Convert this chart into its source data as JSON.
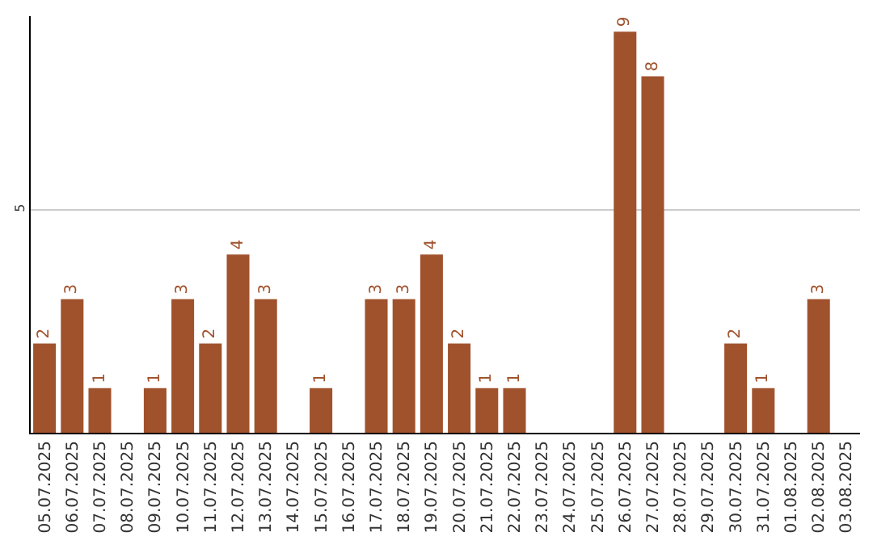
{
  "chart_data": {
    "type": "bar",
    "categories": [
      "05.07.2025",
      "06.07.2025",
      "07.07.2025",
      "08.07.2025",
      "09.07.2025",
      "10.07.2025",
      "11.07.2025",
      "12.07.2025",
      "13.07.2025",
      "14.07.2025",
      "15.07.2025",
      "16.07.2025",
      "17.07.2025",
      "18.07.2025",
      "19.07.2025",
      "20.07.2025",
      "21.07.2025",
      "22.07.2025",
      "23.07.2025",
      "24.07.2025",
      "25.07.2025",
      "26.07.2025",
      "27.07.2025",
      "28.07.2025",
      "29.07.2025",
      "30.07.2025",
      "31.07.2025",
      "01.08.2025",
      "02.08.2025",
      "03.08.2025"
    ],
    "values": [
      2,
      3,
      1,
      0,
      1,
      3,
      2,
      4,
      3,
      0,
      1,
      0,
      3,
      3,
      4,
      2,
      1,
      1,
      0,
      0,
      0,
      9,
      8,
      0,
      0,
      2,
      1,
      0,
      3,
      0
    ],
    "value_labels": [
      "2",
      "3",
      "1",
      null,
      "1",
      "3",
      "2",
      "4",
      "3",
      null,
      "1",
      null,
      "3",
      "3",
      "4",
      "2",
      "1",
      "1",
      null,
      null,
      null,
      "9",
      "8",
      null,
      null,
      "2",
      "1",
      null,
      "3",
      null
    ],
    "color": "#a0522d",
    "ylim": [
      0,
      9.35
    ],
    "yticks": [
      5
    ],
    "grid": "y"
  }
}
